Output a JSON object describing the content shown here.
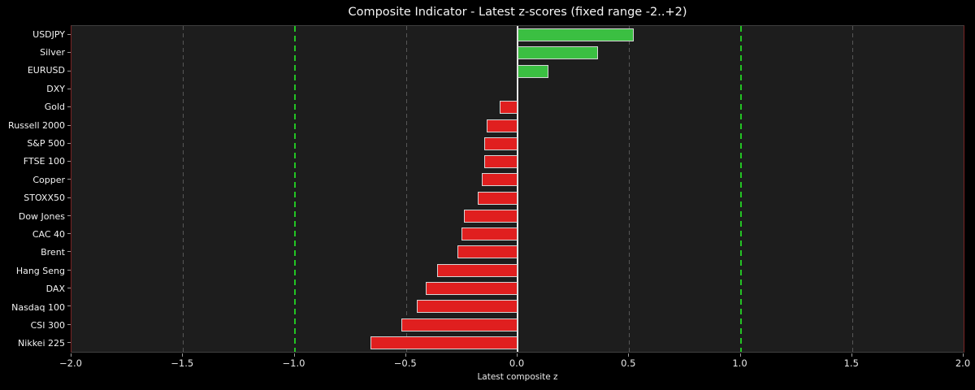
{
  "chart_data": {
    "type": "bar",
    "orientation": "horizontal",
    "title": "Composite Indicator - Latest z-scores (fixed range -2..+2)",
    "xlabel": "Latest composite z",
    "xlim": [
      -2.0,
      2.0
    ],
    "xticks": [
      -2.0,
      -1.5,
      -1.0,
      -0.5,
      0.0,
      0.5,
      1.0,
      1.5,
      2.0
    ],
    "xtick_labels": [
      "−2.0",
      "−1.5",
      "−1.0",
      "−0.5",
      "0.0",
      "0.5",
      "1.0",
      "1.5",
      "2.0"
    ],
    "categories": [
      "USDJPY",
      "Silver",
      "EURUSD",
      "DXY",
      "Gold",
      "Russell 2000",
      "S&P 500",
      "FTSE 100",
      "Copper",
      "STOXX50",
      "Dow Jones",
      "CAC 40",
      "Brent",
      "Hang Seng",
      "DAX",
      "Nasdaq 100",
      "CSI 300",
      "Nikkei 225"
    ],
    "values": [
      0.52,
      0.36,
      0.14,
      0.0,
      -0.08,
      -0.14,
      -0.15,
      -0.15,
      -0.16,
      -0.18,
      -0.24,
      -0.25,
      -0.27,
      -0.36,
      -0.41,
      -0.45,
      -0.52,
      -0.66
    ],
    "threshold_lines": [
      -1.0,
      1.0
    ],
    "gridlines": [
      -1.5,
      -0.5,
      0.5,
      1.5
    ],
    "zero_line": 0.0,
    "grid_on": true,
    "legend": "none",
    "style": {
      "positive_color": "#3bbf42",
      "negative_color": "#e01f1f",
      "bar_edge_color": "#d6d6d6",
      "threshold_color": "#24c524",
      "grid_color": "#575757",
      "zero_line_color": "#e8e8e8",
      "plot_bg": "#1d1d1d",
      "figure_bg": "#000000",
      "text_color": "#f2f2f2",
      "spine_side_color": "#7a2424",
      "spine_topbottom_color": "#3f3f3f"
    }
  }
}
